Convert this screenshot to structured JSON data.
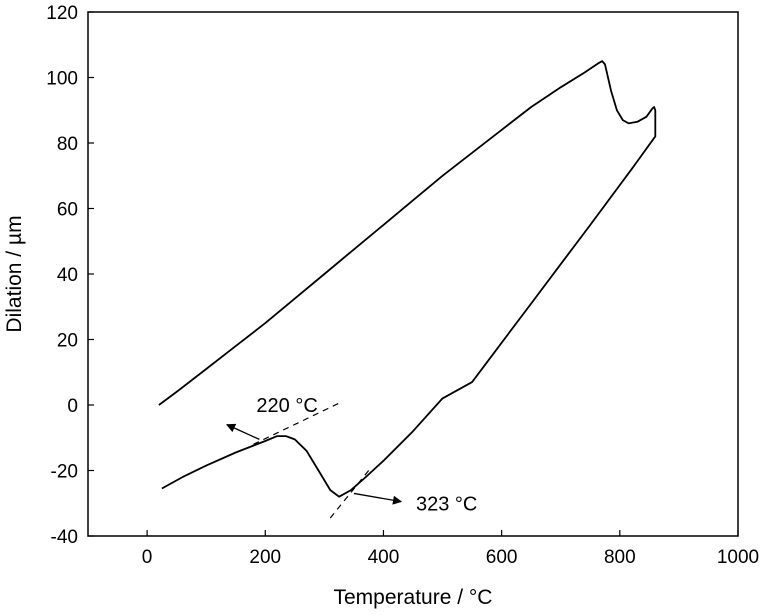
{
  "chart_data": {
    "type": "line",
    "title": "",
    "xlabel": "Temperature / ",
    "xlabel_unit": "°C",
    "ylabel": "Dilation / µm",
    "xlim": [
      -100,
      1000
    ],
    "ylim": [
      -40,
      120
    ],
    "xticks": [
      0,
      200,
      400,
      600,
      800,
      1000
    ],
    "yticks": [
      -40,
      -20,
      0,
      20,
      40,
      60,
      80,
      100,
      120
    ],
    "grid": false,
    "legend": false,
    "series": [
      {
        "values_xy": [
          [
            20,
            0
          ],
          [
            50,
            4
          ],
          [
            100,
            11
          ],
          [
            150,
            18
          ],
          [
            200,
            25
          ],
          [
            250,
            32.5
          ],
          [
            300,
            40
          ],
          [
            350,
            47.5
          ],
          [
            400,
            55
          ],
          [
            450,
            62.5
          ],
          [
            500,
            70
          ],
          [
            550,
            77
          ],
          [
            600,
            84
          ],
          [
            650,
            91
          ],
          [
            700,
            97
          ],
          [
            740,
            101.5
          ],
          [
            765,
            104.5
          ],
          [
            770,
            105
          ],
          [
            775,
            104
          ],
          [
            785,
            96
          ],
          [
            795,
            90
          ],
          [
            805,
            87
          ],
          [
            815,
            86
          ],
          [
            830,
            86.5
          ],
          [
            845,
            88
          ],
          [
            855,
            90.5
          ],
          [
            858,
            91
          ],
          [
            860,
            90
          ],
          [
            860,
            82
          ],
          [
            858,
            81.5
          ],
          [
            820,
            72
          ],
          [
            750,
            55
          ],
          [
            700,
            43
          ],
          [
            650,
            31
          ],
          [
            600,
            19
          ],
          [
            550,
            7
          ],
          [
            500,
            2
          ],
          [
            450,
            -8
          ],
          [
            400,
            -17
          ],
          [
            370,
            -22
          ],
          [
            345,
            -26
          ],
          [
            325,
            -28
          ],
          [
            310,
            -26
          ],
          [
            290,
            -20
          ],
          [
            270,
            -14
          ],
          [
            250,
            -10.5
          ],
          [
            235,
            -9.5
          ],
          [
            220,
            -9.5
          ],
          [
            200,
            -11
          ],
          [
            150,
            -14.5
          ],
          [
            100,
            -18.5
          ],
          [
            60,
            -22
          ],
          [
            30,
            -25
          ],
          [
            25,
            -25.5
          ]
        ]
      }
    ],
    "tangent_lines": [
      {
        "from": [
          180,
          -12
        ],
        "to": [
          330,
          1
        ]
      },
      {
        "from": [
          310,
          -34.5
        ],
        "to": [
          375,
          -20
        ]
      }
    ],
    "annotations": [
      {
        "text": "220 °C",
        "text_at": [
          185,
          0
        ],
        "arrow_from": [
          190,
          -10.5
        ],
        "arrow_to": [
          135,
          -6
        ]
      },
      {
        "text": "323 °C",
        "text_at": [
          455,
          -30
        ],
        "arrow_from": [
          350,
          -27
        ],
        "arrow_to": [
          430,
          -29.5
        ]
      }
    ]
  }
}
